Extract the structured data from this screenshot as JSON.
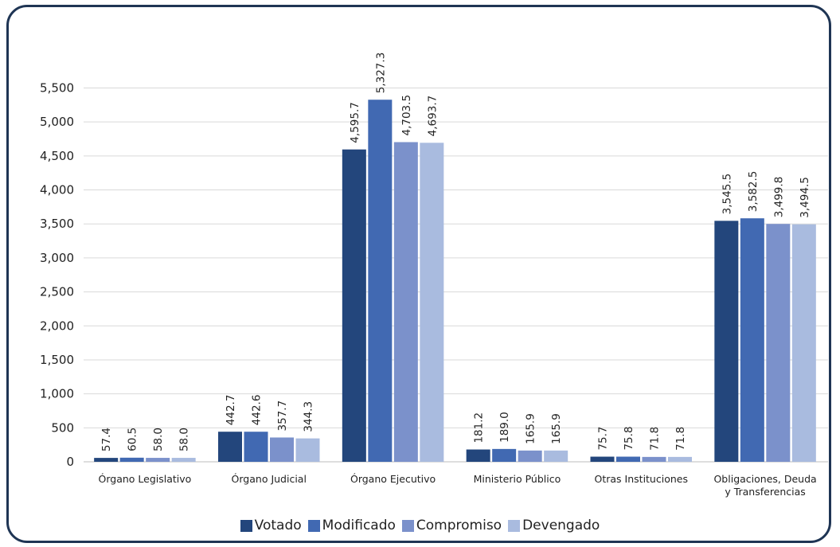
{
  "chart_data": {
    "type": "bar",
    "title": "",
    "xlabel": "",
    "ylabel": "",
    "categories": [
      "Órgano Legislativo",
      "Órgano Judicial",
      "Órgano Ejecutivo",
      "Ministerio Público",
      "Otras Instituciones",
      "Obligaciones, Deuda y Transferencias"
    ],
    "category_lines": [
      [
        "Órgano Legislativo"
      ],
      [
        "Órgano Judicial"
      ],
      [
        "Órgano Ejecutivo"
      ],
      [
        "Ministerio Público"
      ],
      [
        "Otras Instituciones"
      ],
      [
        "Obligaciones, Deuda",
        "y Transferencias"
      ]
    ],
    "series": [
      {
        "name": "Votado",
        "color": "#23467c",
        "values": [
          57.4,
          442.7,
          4595.7,
          181.2,
          75.7,
          3545.5
        ],
        "labels": [
          "57.4",
          "442.7",
          "4,595.7",
          "181.2",
          "75.7",
          "3,545.5"
        ]
      },
      {
        "name": "Modificado",
        "color": "#4169b2",
        "values": [
          60.5,
          442.6,
          5327.3,
          189.0,
          75.8,
          3582.5
        ],
        "labels": [
          "60.5",
          "442.6",
          "5,327.3",
          "189.0",
          "75.8",
          "3,582.5"
        ]
      },
      {
        "name": "Compromiso",
        "color": "#7b91cb",
        "values": [
          58.0,
          357.7,
          4703.5,
          165.9,
          71.8,
          3499.8
        ],
        "labels": [
          "58.0",
          "357.7",
          "4,703.5",
          "165.9",
          "71.8",
          "3,499.8"
        ]
      },
      {
        "name": "Devengado",
        "color": "#a9bbdf",
        "values": [
          58.0,
          344.3,
          4693.7,
          165.9,
          71.8,
          3494.5
        ],
        "labels": [
          "58.0",
          "344.3",
          "4,693.7",
          "165.9",
          "71.8",
          "3,494.5"
        ]
      }
    ],
    "yticks": [
      0,
      500,
      1000,
      1500,
      2000,
      2500,
      3000,
      3500,
      4000,
      4500,
      5000,
      5500
    ],
    "ytick_labels": [
      "0",
      "500",
      "1,000",
      "1,500",
      "2,000",
      "2,500",
      "3,000",
      "3,500",
      "4,000",
      "4,500",
      "5,000",
      "5,500"
    ],
    "ylim": [
      0,
      5500
    ],
    "grid": true,
    "legend_position": "bottom"
  }
}
